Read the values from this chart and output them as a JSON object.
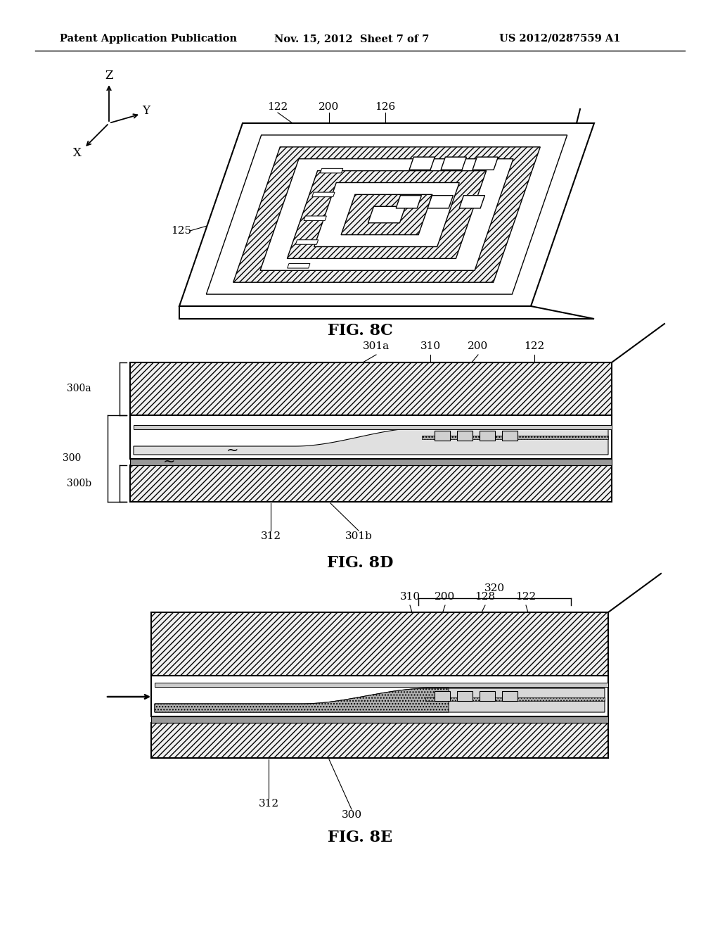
{
  "background_color": "#ffffff",
  "header_left": "Patent Application Publication",
  "header_center": "Nov. 15, 2012  Sheet 7 of 7",
  "header_right": "US 2012/0287559 A1",
  "fig8c_caption": "FIG. 8C",
  "fig8d_caption": "FIG. 8D",
  "fig8e_caption": "FIG. 8E",
  "hatch_pattern": "////",
  "line_color": "#000000",
  "hatch_color": "#000000"
}
